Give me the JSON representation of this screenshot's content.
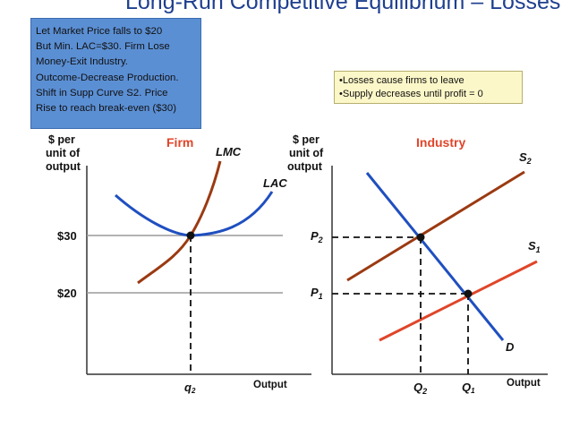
{
  "title": "Long-Run Competitive Equilibrium – Losses",
  "note_lines": [
    "Let Market Price falls to $20",
    "But Min. LAC=$30. Firm Lose",
    "Money-Exit Industry.",
    "Outcome-Decrease Production.",
    "Shift in Supp Curve S2. Price",
    "Rise to reach break-even ($30)"
  ],
  "bullets": [
    "•Losses cause firms to leave",
    "•Supply decreases until profit = 0"
  ],
  "firm": {
    "title": "Firm",
    "y_axis_lines": [
      "$ per",
      "unit of",
      "output"
    ],
    "x_axis_label": "Output",
    "price_high": "$30",
    "price_low": "$20",
    "quantity_label": "q",
    "quantity_sub": "2",
    "curve_lmc": "LMC",
    "curve_lac": "LAC"
  },
  "industry": {
    "title": "Industry",
    "y_axis_lines": [
      "$ per",
      "unit of",
      "output"
    ],
    "x_axis_label": "Output",
    "p2": "P",
    "p2_sub": "2",
    "p1": "P",
    "p1_sub": "1",
    "q2": "Q",
    "q2_sub": "2",
    "q1": "Q",
    "q1_sub": "1",
    "s2": "S",
    "s2_sub": "2",
    "s1": "S",
    "s1_sub": "1",
    "demand": "D"
  },
  "colors": {
    "title": "#1f3f8f",
    "note_box": "#5b8fd4",
    "bullet_box": "#fcf7c8",
    "lmc": "#9b3a12",
    "lac": "#1f4fc0",
    "demand": "#1f4fc0",
    "supply_s2": "#9b3a12",
    "supply_s1": "#e0452a",
    "label_red": "#e0452a"
  }
}
